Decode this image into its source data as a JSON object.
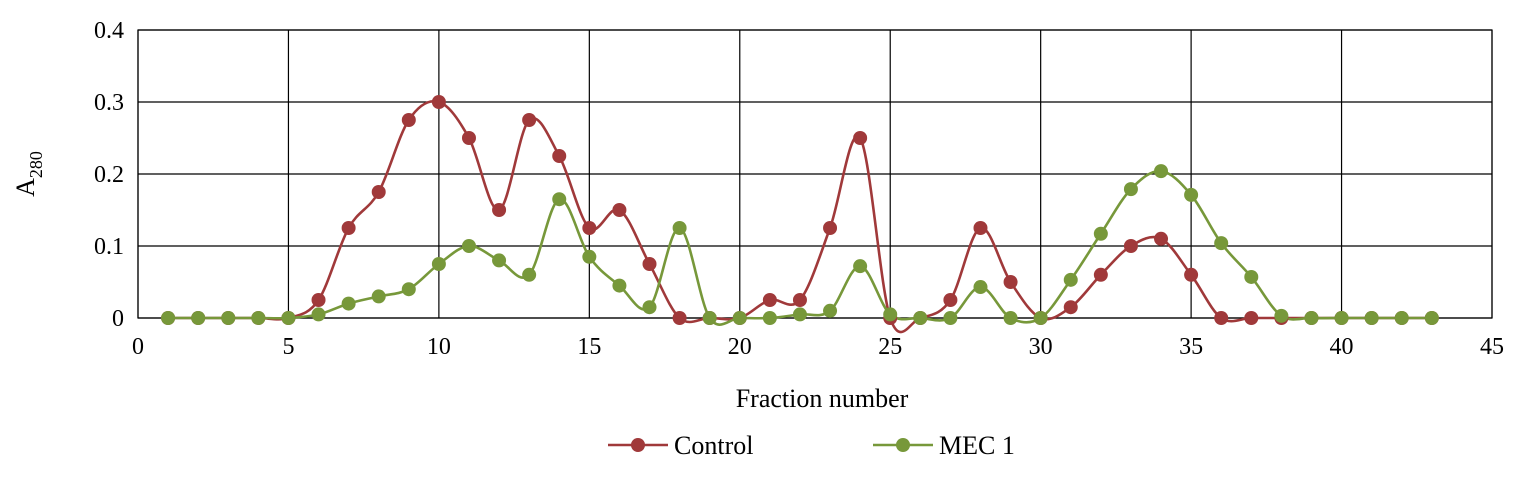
{
  "chart_data": {
    "type": "line",
    "title": "",
    "xlabel": "Fraction number",
    "ylabel_main": "A",
    "ylabel_sub": "280",
    "xlim": [
      0,
      45
    ],
    "ylim": [
      0,
      0.4
    ],
    "x_ticks": [
      0,
      5,
      10,
      15,
      20,
      25,
      30,
      35,
      40,
      45
    ],
    "x_tick_labels": [
      "0",
      "5",
      "10",
      "15",
      "20",
      "25",
      "30",
      "35",
      "40",
      "45"
    ],
    "y_ticks": [
      0,
      0.1,
      0.2,
      0.3,
      0.4
    ],
    "y_tick_labels": [
      "0",
      "0.1",
      "0.2",
      "0.3",
      "0.4"
    ],
    "grid": true,
    "legend_position": "bottom",
    "x": [
      1,
      2,
      3,
      4,
      5,
      6,
      7,
      8,
      9,
      10,
      11,
      12,
      13,
      14,
      15,
      16,
      17,
      18,
      19,
      20,
      21,
      22,
      23,
      24,
      25,
      26,
      27,
      28,
      29,
      30,
      31,
      32,
      33,
      34,
      35,
      36,
      37,
      38,
      39,
      40,
      41,
      42,
      43
    ],
    "series": [
      {
        "name": "Control",
        "color": "#a0393a",
        "values": [
          0,
          0,
          0,
          0,
          0,
          0.025,
          0.125,
          0.175,
          0.275,
          0.3,
          0.25,
          0.15,
          0.275,
          0.225,
          0.125,
          0.15,
          0.075,
          0,
          0,
          0,
          0.025,
          0.025,
          0.125,
          0.25,
          0,
          0,
          0.025,
          0.125,
          0.05,
          0,
          0.015,
          0.06,
          0.1,
          0.11,
          0.06,
          0,
          0,
          0,
          0,
          0,
          0,
          0,
          0
        ]
      },
      {
        "name": "MEC 1",
        "color": "#77983a",
        "values": [
          0,
          0,
          0,
          0,
          0,
          0.005,
          0.02,
          0.03,
          0.04,
          0.075,
          0.1,
          0.08,
          0.06,
          0.165,
          0.085,
          0.045,
          0.015,
          0.125,
          0,
          0,
          0,
          0.005,
          0.01,
          0.072,
          0.005,
          0,
          0,
          0.043,
          0,
          0,
          0.053,
          0.117,
          0.179,
          0.204,
          0.171,
          0.104,
          0.057,
          0.003,
          0,
          0,
          0,
          0,
          0
        ]
      }
    ]
  }
}
